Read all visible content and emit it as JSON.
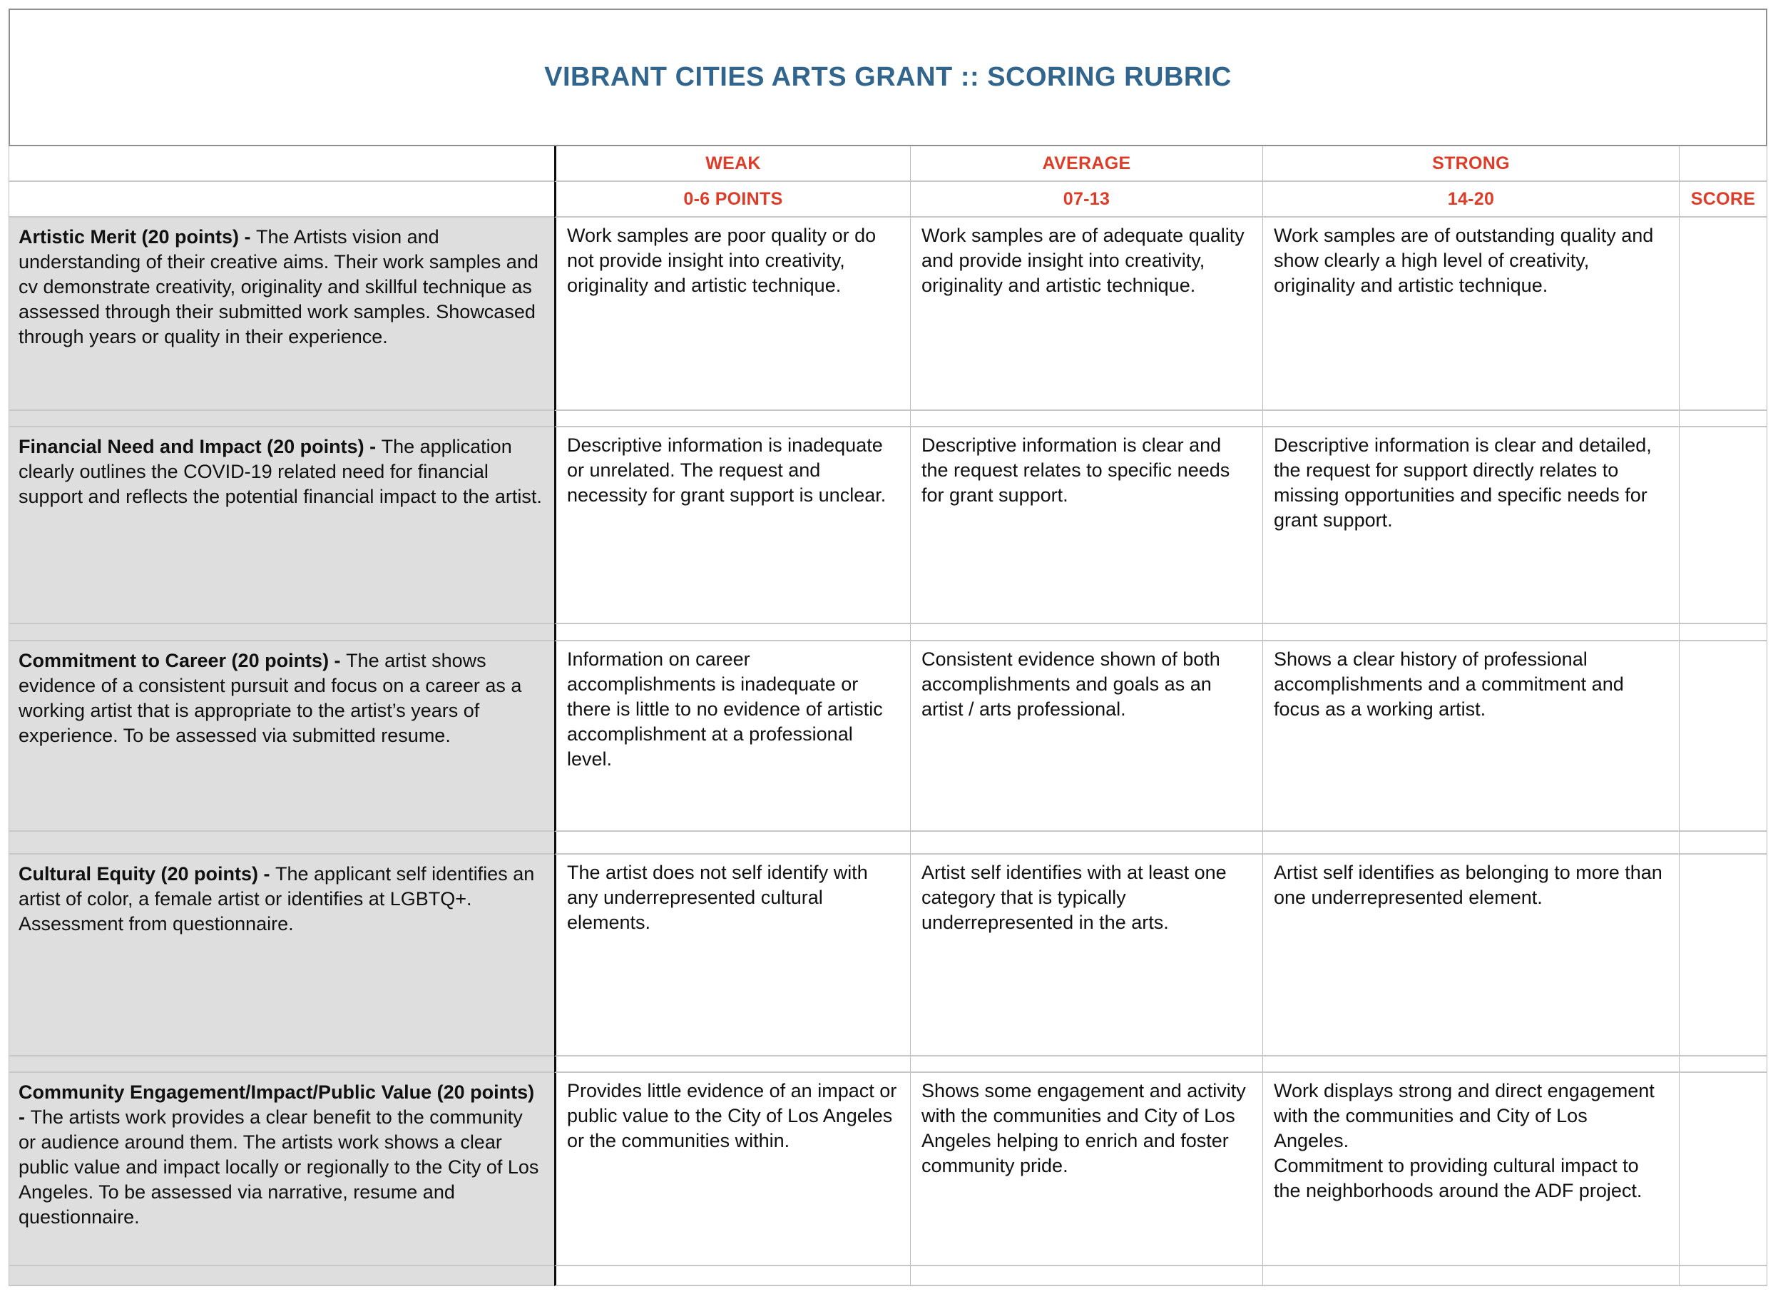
{
  "title": "VIBRANT CITIES ARTS GRANT :: SCORING RUBRIC",
  "colors": {
    "title_blue": "#31658e",
    "header_red": "#dd3c28",
    "criteria_bg": "#dedede"
  },
  "headers": {
    "levels": [
      "WEAK",
      "AVERAGE",
      "STRONG"
    ],
    "points": [
      "0-6 POINTS",
      "07-13",
      "14-20"
    ],
    "score": "SCORE"
  },
  "rows": [
    {
      "criterion_lead": "Artistic Merit (20 points) - ",
      "criterion_rest": "The Artists vision and understanding of their creative aims. Their work samples and cv demonstrate creativity, originality and skillful technique as assessed through their submitted work samples. Showcased through years or quality in their experience.",
      "weak": "Work samples are poor quality or do not provide insight into creativity, originality and artistic technique.",
      "average": "Work samples are of adequate quality and provide insight into creativity, originality and artistic technique.",
      "strong": "Work samples are of outstanding quality and show clearly a high level of creativity, originality and artistic technique."
    },
    {
      "criterion_lead": "Financial Need and Impact (20 points) - ",
      "criterion_rest": "The application clearly outlines the COVID-19 related need for financial support and reflects the potential financial impact to the artist.",
      "weak": "Descriptive information is inadequate or unrelated. The request and necessity for grant support is unclear.",
      "average": "Descriptive information is clear and the request relates to specific needs for grant support.",
      "strong": "Descriptive information is clear and detailed, the request for support directly relates to missing opportunities and specific needs for grant support."
    },
    {
      "criterion_lead": "Commitment to Career (20 points) - ",
      "criterion_rest": "The artist shows evidence of a consistent pursuit and focus on a career as a working artist that is appropriate to the artist’s years of experience. To be assessed via submitted resume.",
      "weak": "Information on career accomplishments is inadequate or there is little to no evidence of artistic accomplishment at a professional level.",
      "average": "Consistent evidence shown of both accomplishments and goals as an artist / arts professional.",
      "strong": "Shows a clear history of professional accomplishments and a commitment and focus as a working artist."
    },
    {
      "criterion_lead": "Cultural Equity (20 points) - ",
      "criterion_rest": "The applicant self identifies an artist of color, a female artist or identifies at LGBTQ+. Assessment from questionnaire.",
      "weak": "The artist does not self identify with any underrepresented cultural elements.",
      "average": "Artist self identifies with at least one category that is typically underrepresented in the arts.",
      "strong": "Artist self identifies as belonging to more than one underrepresented element."
    },
    {
      "criterion_lead": "Community Engagement/Impact/Public Value (20 points) - ",
      "criterion_rest": "The artists work provides a clear benefit to the community or audience around them. The artists work shows a clear public value and impact locally or regionally to the City of Los Angeles. To be assessed via narrative, resume and questionnaire.",
      "weak": "Provides little evidence of an impact or public value to the City of Los Angeles or the communities within.",
      "average": "Shows some engagement and activity with the communities and City of Los Angeles helping to enrich and foster community pride.",
      "strong": "Work displays strong and direct engagement with the communities and City of Los Angeles.\nCommitment to providing cultural impact to the neighborhoods around the ADF project."
    }
  ]
}
